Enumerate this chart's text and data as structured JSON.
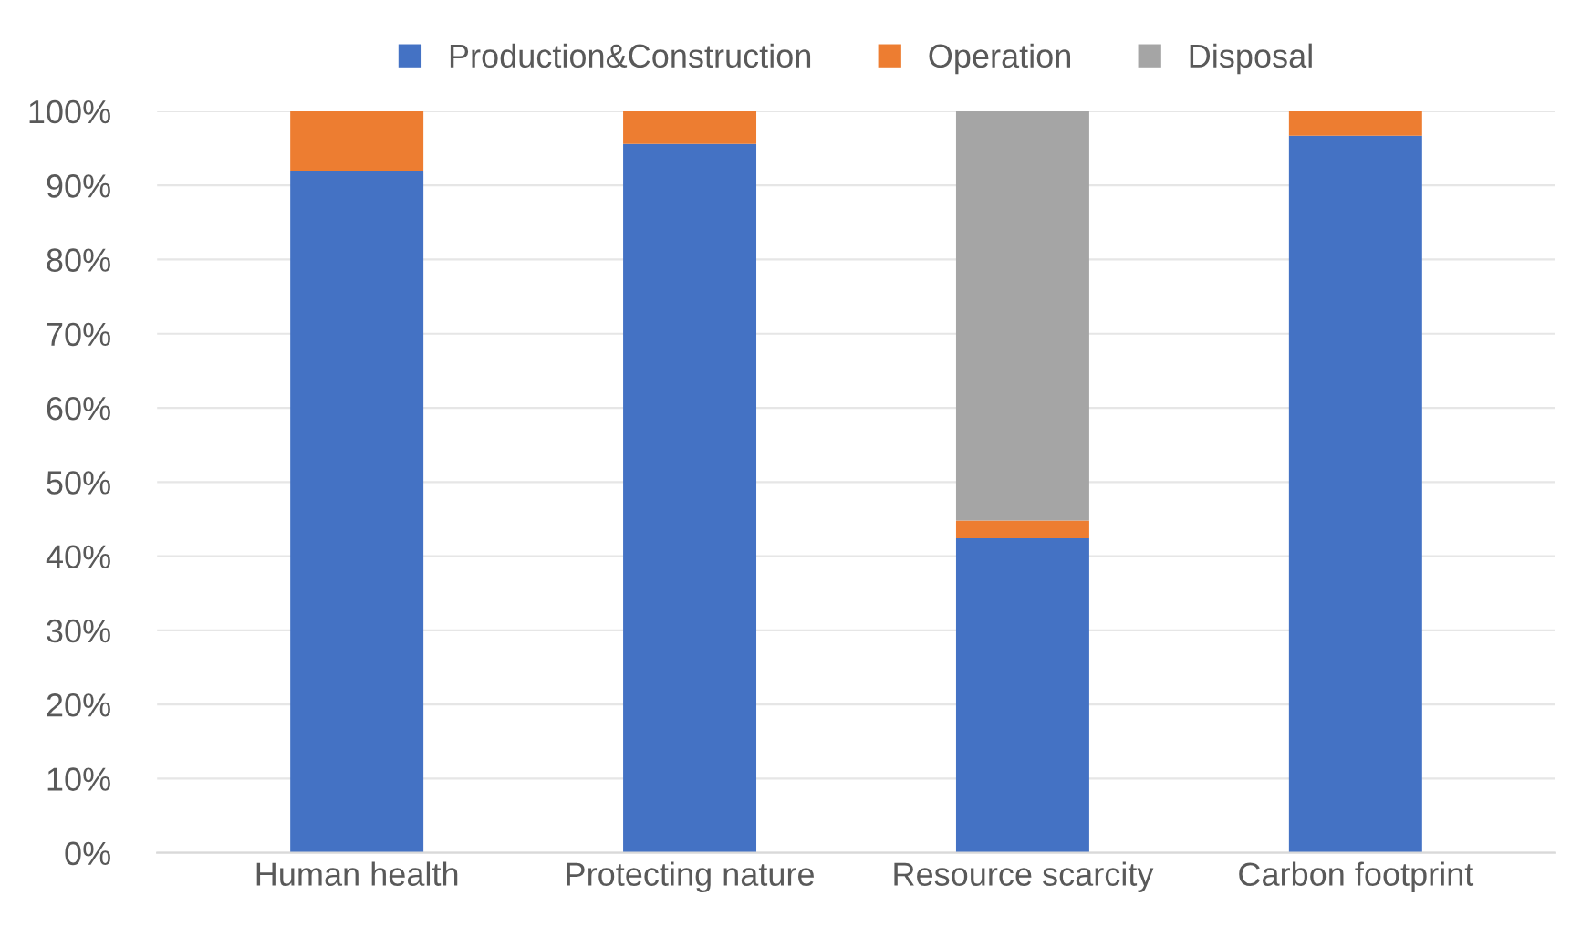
{
  "chart_data": {
    "type": "bar",
    "stacked": true,
    "categories": [
      "Human health",
      "Protecting nature",
      "Resource scarcity",
      "Carbon footprint"
    ],
    "series": [
      {
        "name": "Production&Construction",
        "color": "#4472c4",
        "values": [
          92.0,
          95.6,
          42.4,
          96.7
        ]
      },
      {
        "name": "Operation",
        "color": "#ed7d31",
        "values": [
          8.0,
          4.4,
          2.4,
          3.3
        ]
      },
      {
        "name": "Disposal",
        "color": "#a5a5a5",
        "values": [
          0,
          0,
          55.2,
          0
        ]
      }
    ],
    "ylim": [
      0,
      100
    ],
    "yticks": [
      {
        "value": 0,
        "label": "0%"
      },
      {
        "value": 10,
        "label": "10%"
      },
      {
        "value": 20,
        "label": "20%"
      },
      {
        "value": 30,
        "label": "30%"
      },
      {
        "value": 40,
        "label": "40%"
      },
      {
        "value": 50,
        "label": "50%"
      },
      {
        "value": 60,
        "label": "60%"
      },
      {
        "value": 70,
        "label": "70%"
      },
      {
        "value": 80,
        "label": "80%"
      },
      {
        "value": 90,
        "label": "90%"
      },
      {
        "value": 100,
        "label": "100%"
      }
    ],
    "grid": "y",
    "legend": "top"
  }
}
